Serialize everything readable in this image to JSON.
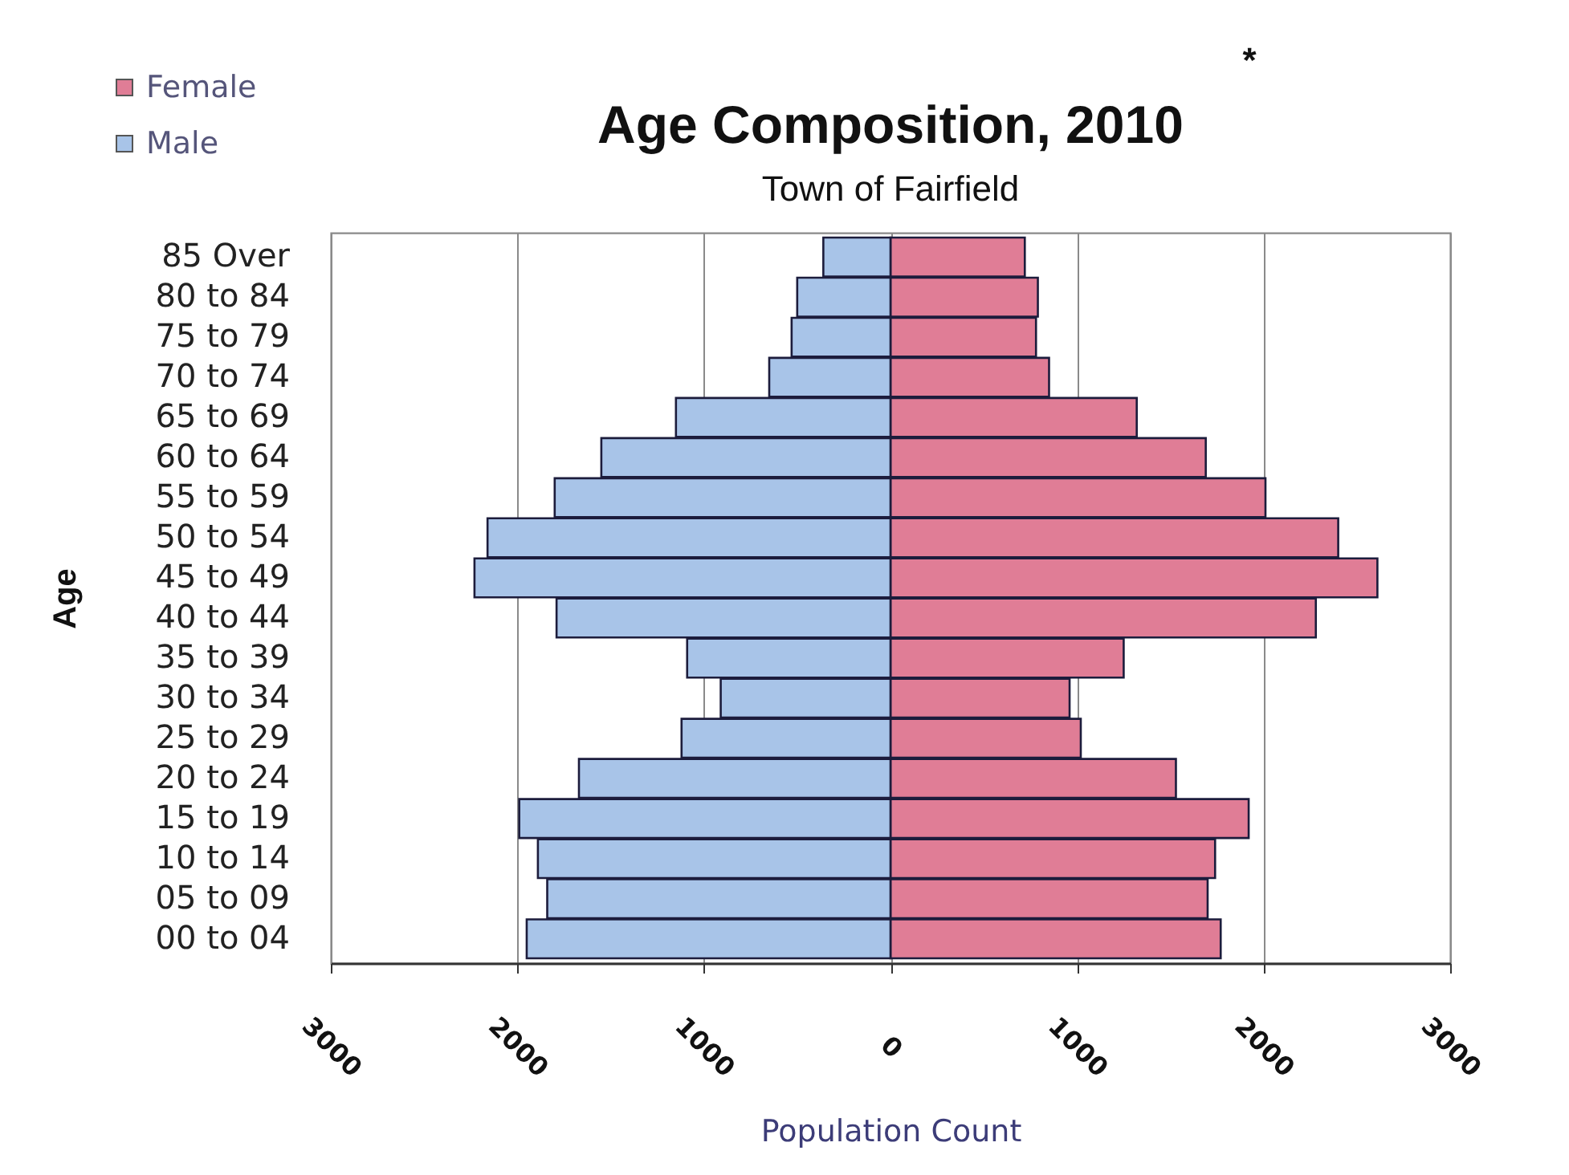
{
  "chart_data": {
    "type": "bar",
    "orientation": "horizontal",
    "stacked": true,
    "title": "Age Composition, 2010",
    "subtitle": "Town of Fairfield",
    "xlabel": "Population Count",
    "ylabel": "Age",
    "annotations": [
      "*"
    ],
    "categories": [
      "85 Over",
      "80 to 84",
      "75 to 79",
      "70 to 74",
      "65 to 69",
      "60 to 64",
      "55 to 59",
      "50 to 54",
      "45 to 49",
      "40 to 44",
      "35 to 39",
      "30 to 34",
      "25 to 29",
      "20 to 24",
      "15 to 19",
      "10 to 14",
      "05 to 09",
      "00 to 04"
    ],
    "series": [
      {
        "name": "Female",
        "color": "#e07d96",
        "values": [
          720,
          790,
          780,
          850,
          1320,
          1690,
          2010,
          2400,
          2610,
          2280,
          1250,
          960,
          1020,
          1530,
          1920,
          1740,
          1700,
          1770
        ]
      },
      {
        "name": "Male",
        "color": "#a8c4e8",
        "values": [
          -360,
          -500,
          -530,
          -650,
          -1150,
          -1550,
          -1800,
          -2160,
          -2230,
          -1790,
          -1090,
          -910,
          -1120,
          -1670,
          -1990,
          -1890,
          -1840,
          -1950
        ]
      }
    ],
    "xlim": [
      -3000,
      3000
    ],
    "xticks": [
      {
        "value": -3000,
        "label": "3000"
      },
      {
        "value": -2000,
        "label": "2000"
      },
      {
        "value": -1000,
        "label": "1000"
      },
      0,
      1000,
      2000,
      3000
    ],
    "grid": "x",
    "legend": "top left"
  }
}
